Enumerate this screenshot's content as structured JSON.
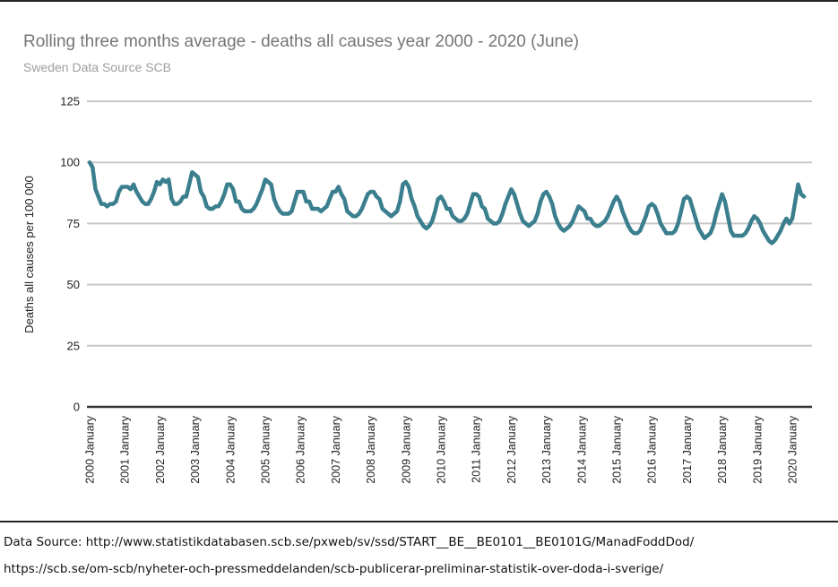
{
  "source": {
    "line1": "Data Source: http://www.statistikdatabasen.scb.se/pxweb/sv/ssd/START__BE__BE0101__BE0101G/ManadFoddDod/",
    "line2": "https://scb.se/om-scb/nyheter-och-pressmeddelanden/scb-publicerar-preliminar-statistik-over-doda-i-sverige/"
  },
  "chart_data": {
    "type": "line",
    "title": "Rolling three months average - deaths all causes year 2000 - 2020 (June)",
    "subtitle": "Sweden Data Source SCB",
    "xlabel": "",
    "ylabel": "Deaths all causes per 100 000",
    "ylim": [
      0,
      125
    ],
    "yticks": [
      0,
      25,
      50,
      75,
      100,
      125
    ],
    "grid": true,
    "legend": "none",
    "colors": {
      "line": "#3b7f8f",
      "grid": "#c8c8c8",
      "axis": "#333333"
    },
    "x_tick_labels": [
      "2000 January",
      "2001 January",
      "2002 January",
      "2003 January",
      "2004 January",
      "2005 January",
      "2006 January",
      "2007 January",
      "2008 January",
      "2009 January",
      "2010 January",
      "2011 January",
      "2012 January",
      "2013 January",
      "2014 January",
      "2015 January",
      "2016 January",
      "2017 January",
      "2018 January",
      "2019 January",
      "2020 January"
    ],
    "x_start": "2000-01",
    "x_end": "2020-06",
    "series": [
      {
        "values": [
          100,
          98,
          89,
          86,
          83,
          83,
          82,
          83,
          83,
          84,
          88,
          90,
          90,
          90,
          89,
          91,
          88,
          86,
          84,
          83,
          83,
          85,
          88,
          92,
          91,
          93,
          92,
          93,
          85,
          83,
          83,
          84,
          86,
          86,
          91,
          96,
          95,
          94,
          88,
          86,
          82,
          81,
          81,
          82,
          82,
          84,
          87,
          91,
          91,
          89,
          84,
          84,
          81,
          80,
          80,
          80,
          81,
          83,
          86,
          89,
          93,
          92,
          91,
          85,
          82,
          80,
          79,
          79,
          79,
          80,
          84,
          88,
          88,
          88,
          84,
          84,
          81,
          81,
          81,
          80,
          81,
          82,
          85,
          88,
          88,
          90,
          87,
          85,
          80,
          79,
          78,
          78,
          79,
          81,
          84,
          87,
          88,
          88,
          86,
          85,
          81,
          80,
          79,
          78,
          79,
          80,
          84,
          91,
          92,
          90,
          85,
          82,
          78,
          76,
          74,
          73,
          74,
          76,
          80,
          85,
          86,
          84,
          81,
          81,
          78,
          77,
          76,
          76,
          77,
          79,
          83,
          87,
          87,
          86,
          82,
          81,
          77,
          76,
          75,
          75,
          76,
          79,
          83,
          86,
          89,
          87,
          83,
          79,
          76,
          75,
          74,
          75,
          76,
          79,
          84,
          87,
          88,
          86,
          83,
          78,
          75,
          73,
          72,
          73,
          74,
          76,
          79,
          82,
          81,
          80,
          77,
          77,
          75,
          74,
          74,
          75,
          76,
          78,
          81,
          84,
          86,
          84,
          80,
          77,
          74,
          72,
          71,
          71,
          72,
          75,
          78,
          82,
          83,
          82,
          79,
          75,
          73,
          71,
          71,
          71,
          72,
          75,
          80,
          85,
          86,
          85,
          81,
          77,
          73,
          71,
          69,
          70,
          71,
          74,
          79,
          83,
          87,
          84,
          78,
          72,
          70,
          70,
          70,
          70,
          71,
          73,
          76,
          78,
          77,
          75,
          72,
          70,
          68,
          67,
          68,
          70,
          72,
          75,
          77,
          75,
          77,
          84,
          91,
          87,
          86
        ]
      }
    ]
  }
}
